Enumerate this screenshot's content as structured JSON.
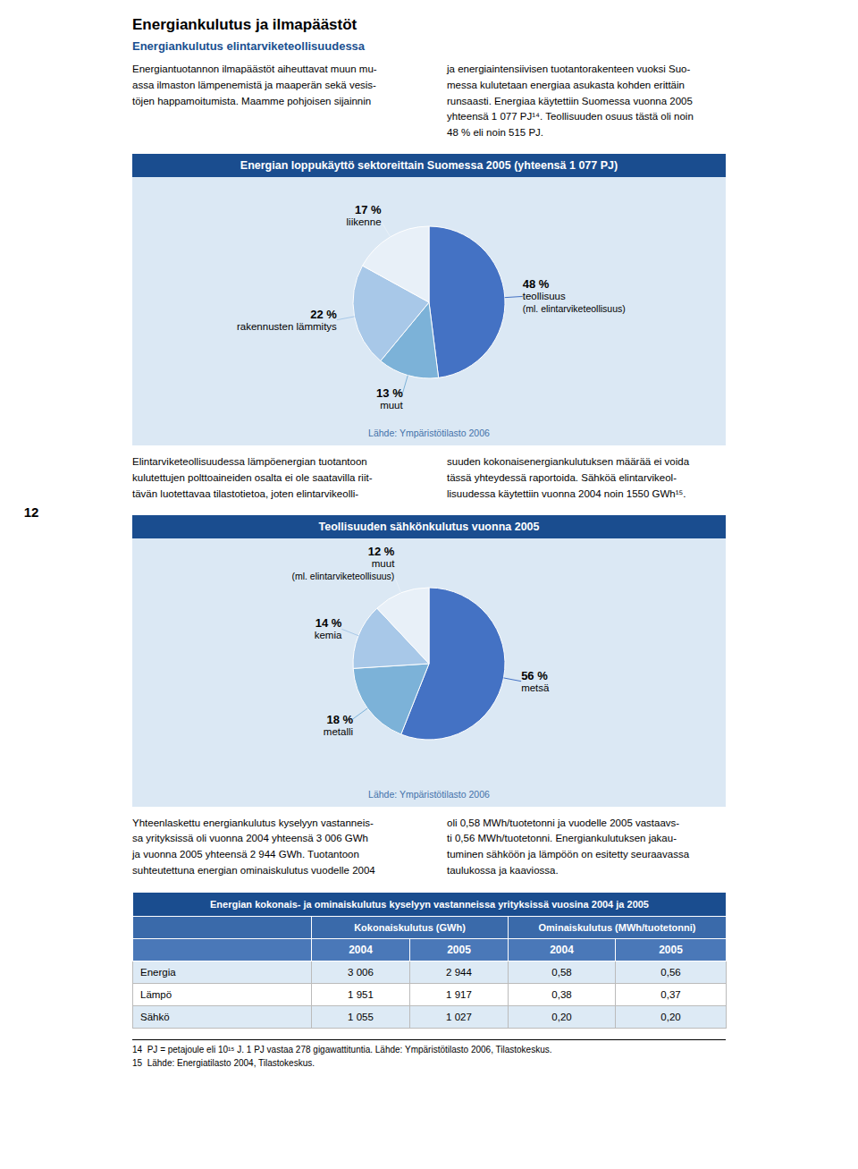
{
  "title": "Energiankulutus ja ilmapäästöt",
  "subtitle": "Energiankulutus elintarviketeollisuudessa",
  "page_number": "12",
  "text_blocks": [
    [
      "Energiantuotannon ilmapäästöt aiheuttavat muun mu-\nassa ilmaston lämpenemistä ja maaperän sekä vesis-\ntöjen happamoitumista. Maamme pohjoisen sijainnin",
      "ja energiaintensiivisen tuotantorakenteen vuoksi Suo-\nmessa kulutetaan energiaa asukasta kohden erittäin\nrunsaasti. Energiaa käytettiin Suomessa vuonna 2005\nyhteensä 1 077 PJ¹⁴. Teollisuuden osuus tästä oli noin\n48 % eli noin 515 PJ."
    ],
    [
      "Elintarviketeollisuudessa lämpöenergian tuotantoon\nkulutettujen polttoaineiden osalta ei ole saatavilla riit-\ntävän luotettavaa tilastotietoa, joten elintarvikeolli-",
      "suuden kokonaisenergiankulutuksen määrää ei voida\ntässä yhteydessä raportoida. Sähköä elintarvikeol-\nlisuudessa käytettiin vuonna 2004 noin 1550 GWh¹⁵."
    ],
    [
      "Yhteenlaskettu energiankulutus kyselyyn vastanneis-\nsa yrityksissä oli vuonna 2004 yhteensä 3 006 GWh\nja vuonna 2005 yhteensä 2 944 GWh. Tuotantoon\nsuhteutettuna energian ominaiskulutus vuodelle 2004",
      "oli 0,58 MWh/tuotetonni ja vuodelle 2005 vastaavs-\nti 0,56 MWh/tuotetonni. Energiankulutuksen jakau-\ntuminen sähköön ja lämpöön on esitetty seuraavassa\ntaulukossa ja kaaviossa."
    ]
  ],
  "chart_data": [
    {
      "type": "pie",
      "title": "Energian loppukäyttö sektoreittain Suomessa 2005 (yhteensä 1 077 PJ)",
      "categories": [
        "teollisuus\n(ml. elintarviketeollisuus)",
        "muut",
        "rakennusten lämmitys",
        "liikenne"
      ],
      "values": [
        48,
        13,
        22,
        17
      ],
      "value_labels": [
        "48 %",
        "13 %",
        "22 %",
        "17 %"
      ],
      "colors": [
        "#4472C4",
        "#7cb2d8",
        "#a8c8e8",
        "#e8f0f8"
      ],
      "data_labels": true,
      "annotations": [
        "Lähde: Ympäristötilasto 2006"
      ]
    },
    {
      "type": "pie",
      "title": "Teollisuuden sähkönkulutus vuonna 2005",
      "categories": [
        "metsä",
        "metalli",
        "kemia",
        "muut\n(ml. elintarviketeollisuus)"
      ],
      "values": [
        56,
        18,
        14,
        12
      ],
      "value_labels": [
        "56 %",
        "18 %",
        "14 %",
        "12 %"
      ],
      "colors": [
        "#4472C4",
        "#7cb2d8",
        "#a8c8e8",
        "#e8f0f8"
      ],
      "data_labels": true,
      "annotations": [
        "Lähde: Ympäristötilasto 2006"
      ]
    }
  ],
  "table": {
    "title": "Energian kokonais- ja ominaiskulutus kyselyyn vastanneissa yrityksissä vuosina 2004 ja 2005",
    "column_groups": [
      "Kokonaiskulutus (GWh)",
      "Ominaiskulutus (MWh/tuotetonni)"
    ],
    "columns": [
      "2004",
      "2005",
      "2004",
      "2005"
    ],
    "rows": [
      [
        "Energia",
        "3 006",
        "2 944",
        "0,58",
        "0,56"
      ],
      [
        "Lämpö",
        "1 951",
        "1 917",
        "0,38",
        "0,37"
      ],
      [
        "Sähkö",
        "1 055",
        "1 027",
        "0,20",
        "0,20"
      ]
    ]
  },
  "footnotes": [
    "14  PJ = petajoule eli 10¹⁵ J. 1 PJ vastaa 278 gigawattituntia. Lähde: Ympäristötilasto 2006, Tilastokeskus.",
    "15  Lähde: Energiatilasto 2004, Tilastokeskus."
  ]
}
